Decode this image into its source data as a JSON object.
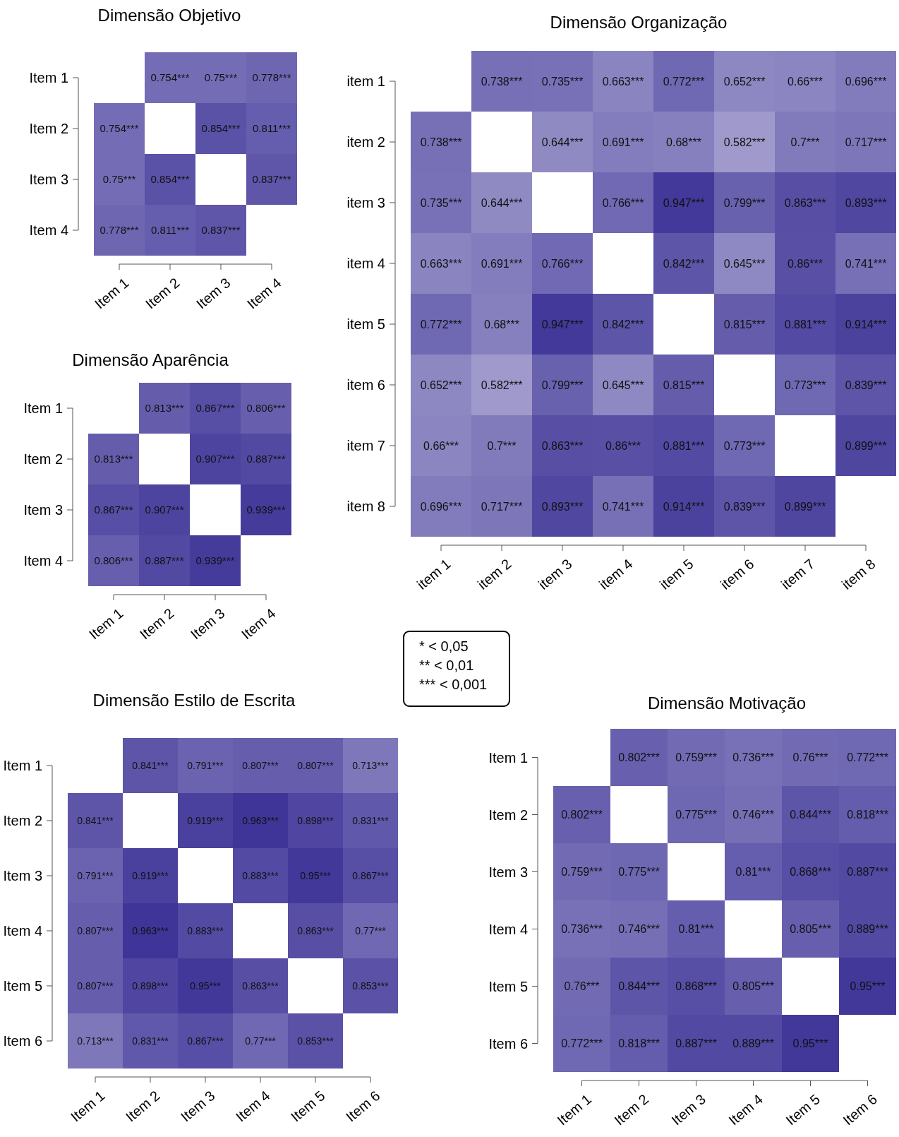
{
  "chart_data": [
    {
      "type": "heatmap",
      "title": "Dimensão Objetivo",
      "categories": [
        "Item 1",
        "Item 2",
        "Item 3",
        "Item 4"
      ],
      "y_categories": [
        "Item 1",
        "Item 2",
        "Item 3",
        "Item 4"
      ],
      "cells": [
        [
          null,
          0.754,
          0.75,
          0.778
        ],
        [
          0.754,
          null,
          0.854,
          0.811
        ],
        [
          0.75,
          0.854,
          null,
          0.837
        ],
        [
          0.778,
          0.811,
          0.837,
          null
        ]
      ],
      "cell_labels": [
        [
          null,
          "0.754***",
          "0.75***",
          "0.778***"
        ],
        [
          "0.754***",
          null,
          "0.854***",
          "0.811***"
        ],
        [
          "0.75***",
          "0.854***",
          null,
          "0.837***"
        ],
        [
          "0.778***",
          "0.811***",
          "0.837***",
          null
        ]
      ]
    },
    {
      "type": "heatmap",
      "title": "Dimensão Organização",
      "categories": [
        "item 1",
        "item 2",
        "item 3",
        "item 4",
        "item 5",
        "item 6",
        "item 7",
        "item 8"
      ],
      "y_categories": [
        "item 1",
        "item 2",
        "item 3",
        "item 4",
        "item 5",
        "item 6",
        "item 7",
        "item 8"
      ],
      "cells": [
        [
          null,
          0.738,
          0.735,
          0.663,
          0.772,
          0.652,
          0.66,
          0.696
        ],
        [
          0.738,
          null,
          0.644,
          0.691,
          0.68,
          0.582,
          0.7,
          0.717
        ],
        [
          0.735,
          0.644,
          null,
          0.766,
          0.947,
          0.799,
          0.863,
          0.893
        ],
        [
          0.663,
          0.691,
          0.766,
          null,
          0.842,
          0.645,
          0.86,
          0.741
        ],
        [
          0.772,
          0.68,
          0.947,
          0.842,
          null,
          0.815,
          0.881,
          0.914
        ],
        [
          0.652,
          0.582,
          0.799,
          0.645,
          0.815,
          null,
          0.773,
          0.839
        ],
        [
          0.66,
          0.7,
          0.863,
          0.86,
          0.881,
          0.773,
          null,
          0.899
        ],
        [
          0.696,
          0.717,
          0.893,
          0.741,
          0.914,
          0.839,
          0.899,
          null
        ]
      ],
      "cell_labels": [
        [
          null,
          "0.738***",
          "0.735***",
          "0.663***",
          "0.772***",
          "0.652***",
          "0.66***",
          "0.696***"
        ],
        [
          "0.738***",
          null,
          "0.644***",
          "0.691***",
          "0.68***",
          "0.582***",
          "0.7***",
          "0.717***"
        ],
        [
          "0.735***",
          "0.644***",
          null,
          "0.766***",
          "0.947***",
          "0.799***",
          "0.863***",
          "0.893***"
        ],
        [
          "0.663***",
          "0.691***",
          "0.766***",
          null,
          "0.842***",
          "0.645***",
          "0.86***",
          "0.741***"
        ],
        [
          "0.772***",
          "0.68***",
          "0.947***",
          "0.842***",
          null,
          "0.815***",
          "0.881***",
          "0.914***"
        ],
        [
          "0.652***",
          "0.582***",
          "0.799***",
          "0.645***",
          "0.815***",
          null,
          "0.773***",
          "0.839***"
        ],
        [
          "0.66***",
          "0.7***",
          "0.863***",
          "0.86***",
          "0.881***",
          "0.773***",
          null,
          "0.899***"
        ],
        [
          "0.696***",
          "0.717***",
          "0.893***",
          "0.741***",
          "0.914***",
          "0.839***",
          "0.899***",
          null
        ]
      ]
    },
    {
      "type": "heatmap",
      "title": "Dimensão Aparência",
      "categories": [
        "Item 1",
        "Item 2",
        "Item 3",
        "Item 4"
      ],
      "y_categories": [
        "Item 1",
        "Item 2",
        "Item 3",
        "Item 4"
      ],
      "cells": [
        [
          null,
          0.813,
          0.867,
          0.806
        ],
        [
          0.813,
          null,
          0.907,
          0.887
        ],
        [
          0.867,
          0.907,
          null,
          0.939
        ],
        [
          0.806,
          0.887,
          0.939,
          null
        ]
      ],
      "cell_labels": [
        [
          null,
          "0.813***",
          "0.867***",
          "0.806***"
        ],
        [
          "0.813***",
          null,
          "0.907***",
          "0.887***"
        ],
        [
          "0.867***",
          "0.907***",
          null,
          "0.939***"
        ],
        [
          "0.806***",
          "0.887***",
          "0.939***",
          null
        ]
      ]
    },
    {
      "type": "other",
      "annotations": [
        "* < 0,05",
        "** < 0,01",
        "*** < 0,001"
      ]
    },
    {
      "type": "heatmap",
      "title": "Dimensão Estilo de Escrita",
      "categories": [
        "Item 1",
        "Item 2",
        "Item 3",
        "Item 4",
        "Item 5",
        "Item 6"
      ],
      "y_categories": [
        "Item 1",
        "Item 2",
        "Item 3",
        "Item 4",
        "Item 5",
        "Item 6"
      ],
      "cells": [
        [
          null,
          0.841,
          0.791,
          0.807,
          0.807,
          0.713
        ],
        [
          0.841,
          null,
          0.919,
          0.963,
          0.898,
          0.831
        ],
        [
          0.791,
          0.919,
          null,
          0.883,
          0.95,
          0.867
        ],
        [
          0.807,
          0.963,
          0.883,
          null,
          0.863,
          0.77
        ],
        [
          0.807,
          0.898,
          0.95,
          0.863,
          null,
          0.853
        ],
        [
          0.713,
          0.831,
          0.867,
          0.77,
          0.853,
          null
        ]
      ],
      "cell_labels": [
        [
          null,
          "0.841***",
          "0.791***",
          "0.807***",
          "0.807***",
          "0.713***"
        ],
        [
          "0.841***",
          null,
          "0.919***",
          "0.963***",
          "0.898***",
          "0.831***"
        ],
        [
          "0.791***",
          "0.919***",
          null,
          "0.883***",
          "0.95***",
          "0.867***"
        ],
        [
          "0.807***",
          "0.963***",
          "0.883***",
          null,
          "0.863***",
          "0.77***"
        ],
        [
          "0.807***",
          "0.898***",
          "0.95***",
          "0.863***",
          null,
          "0.853***"
        ],
        [
          "0.713***",
          "0.831***",
          "0.867***",
          "0.77***",
          "0.853***",
          null
        ]
      ]
    },
    {
      "type": "heatmap",
      "title": "Dimensão Motivação",
      "categories": [
        "Item 1",
        "Item 2",
        "Item 3",
        "Item 4",
        "Item 5",
        "Item 6"
      ],
      "y_categories": [
        "Item 1",
        "Item 2",
        "Item 3",
        "Item 4",
        "Item 5",
        "Item 6"
      ],
      "cells": [
        [
          null,
          0.802,
          0.759,
          0.736,
          0.76,
          0.772
        ],
        [
          0.802,
          null,
          0.775,
          0.746,
          0.844,
          0.818
        ],
        [
          0.759,
          0.775,
          null,
          0.81,
          0.868,
          0.887
        ],
        [
          0.736,
          0.746,
          0.81,
          null,
          0.805,
          0.889
        ],
        [
          0.76,
          0.844,
          0.868,
          0.805,
          null,
          0.95
        ],
        [
          0.772,
          0.818,
          0.887,
          0.889,
          0.95,
          null
        ]
      ],
      "cell_labels": [
        [
          null,
          "0.802***",
          "0.759***",
          "0.736***",
          "0.76***",
          "0.772***"
        ],
        [
          "0.802***",
          null,
          "0.775***",
          "0.746***",
          "0.844***",
          "0.818***"
        ],
        [
          "0.759***",
          "0.775***",
          null,
          "0.81***",
          "0.868***",
          "0.887***"
        ],
        [
          "0.736***",
          "0.746***",
          "0.81***",
          null,
          "0.805***",
          "0.889***"
        ],
        [
          "0.76***",
          "0.844***",
          "0.868***",
          "0.805***",
          null,
          "0.95***"
        ],
        [
          "0.772***",
          "0.818***",
          "0.887***",
          "0.889***",
          "0.95***",
          null
        ]
      ]
    }
  ]
}
